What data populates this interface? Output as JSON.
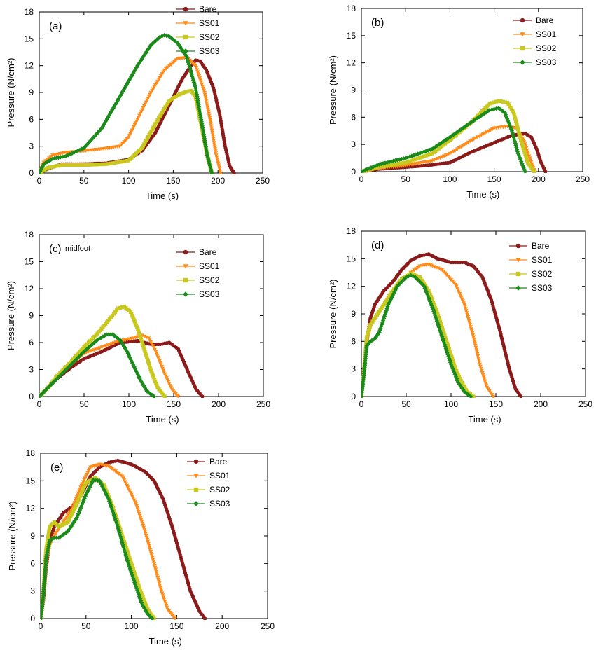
{
  "chart_data": [
    {
      "panel": "(a)",
      "type": "scatter",
      "xlabel": "Time (s)",
      "ylabel": "Pressure (N/cm²)",
      "xlim": [
        0,
        250
      ],
      "ylim": [
        0,
        18
      ],
      "xticks": [
        0,
        50,
        100,
        150,
        200,
        250
      ],
      "yticks": [
        0,
        3,
        6,
        9,
        12,
        15,
        18
      ],
      "xtick_labels": [
        "0",
        "50",
        "100",
        "150",
        "200",
        "250"
      ],
      "ytick_labels": [
        "0",
        "3",
        "6",
        "9",
        "12",
        "15",
        "18"
      ],
      "legend_position": "top-right",
      "series": [
        {
          "name": "Bare",
          "color": "#8b1a1a",
          "marker": "circle",
          "x": [
            0,
            10,
            25,
            50,
            75,
            100,
            115,
            130,
            145,
            160,
            170,
            175,
            180,
            187,
            195,
            202,
            208,
            213,
            218
          ],
          "y": [
            0,
            0.5,
            1.0,
            1.0,
            1.1,
            1.5,
            2.5,
            4.5,
            7.5,
            10.5,
            12.0,
            12.6,
            12.5,
            11.5,
            9.5,
            6.5,
            3.0,
            0.8,
            0
          ]
        },
        {
          "name": "SS01",
          "color": "#ff8c1a",
          "marker": "triangle-down",
          "x": [
            0,
            5,
            15,
            30,
            50,
            70,
            90,
            100,
            110,
            125,
            140,
            155,
            165,
            175,
            185,
            192,
            198,
            203
          ],
          "y": [
            0,
            1.2,
            2.0,
            2.3,
            2.5,
            2.7,
            3.0,
            4.0,
            6.0,
            9.0,
            11.5,
            12.8,
            12.9,
            12.0,
            9.0,
            5.5,
            2.0,
            0
          ]
        },
        {
          "name": "SS02",
          "color": "#c8c81e",
          "marker": "square",
          "x": [
            0,
            10,
            25,
            50,
            75,
            100,
            115,
            130,
            145,
            155,
            165,
            170,
            175,
            182,
            188,
            193
          ],
          "y": [
            0,
            0.6,
            0.9,
            0.9,
            1.0,
            1.4,
            2.8,
            5.5,
            8.0,
            8.7,
            9.1,
            9.2,
            8.5,
            5.0,
            2.0,
            0
          ]
        },
        {
          "name": "SS03",
          "color": "#1a8a1a",
          "marker": "diamond",
          "x": [
            0,
            5,
            15,
            30,
            50,
            70,
            90,
            110,
            125,
            135,
            140,
            145,
            155,
            165,
            175,
            182,
            188,
            193
          ],
          "y": [
            0,
            1.0,
            1.6,
            1.9,
            2.8,
            5.0,
            8.5,
            12.0,
            14.3,
            15.2,
            15.4,
            15.3,
            14.5,
            13.0,
            9.5,
            5.5,
            2.0,
            0
          ]
        }
      ]
    },
    {
      "panel": "(b)",
      "type": "scatter",
      "xlabel": "Time (s)",
      "ylabel": "Pressure (N/cm²)",
      "xlim": [
        0,
        250
      ],
      "ylim": [
        0,
        18
      ],
      "xticks": [
        0,
        50,
        100,
        150,
        200,
        250
      ],
      "yticks": [
        0,
        3,
        6,
        9,
        12,
        15,
        18
      ],
      "xtick_labels": [
        "0",
        "50",
        "100",
        "150",
        "200",
        "250"
      ],
      "ytick_labels": [
        "0",
        "3",
        "6",
        "9",
        "12",
        "15",
        "18"
      ],
      "legend_position": "top-right",
      "series": [
        {
          "name": "Bare",
          "color": "#8b1a1a",
          "marker": "circle",
          "x": [
            0,
            20,
            50,
            75,
            100,
            125,
            150,
            170,
            185,
            192,
            198,
            203,
            208
          ],
          "y": [
            0,
            0.3,
            0.5,
            0.7,
            1.0,
            2.2,
            3.2,
            4.0,
            4.2,
            3.8,
            2.5,
            1.0,
            0
          ]
        },
        {
          "name": "SS01",
          "color": "#ff8c1a",
          "marker": "triangle-down",
          "x": [
            0,
            20,
            50,
            80,
            100,
            125,
            150,
            165,
            175,
            183,
            190,
            196
          ],
          "y": [
            0,
            0.4,
            0.7,
            1.2,
            2.0,
            3.5,
            4.8,
            5.0,
            4.8,
            3.5,
            1.5,
            0
          ]
        },
        {
          "name": "SS02",
          "color": "#c8c81e",
          "marker": "square",
          "x": [
            0,
            20,
            50,
            80,
            100,
            125,
            145,
            155,
            165,
            172,
            180,
            188,
            195
          ],
          "y": [
            0,
            0.5,
            1.0,
            2.0,
            3.5,
            5.5,
            7.5,
            7.8,
            7.6,
            6.5,
            3.5,
            1.0,
            0
          ]
        },
        {
          "name": "SS03",
          "color": "#1a8a1a",
          "marker": "diamond",
          "x": [
            0,
            20,
            50,
            80,
            100,
            125,
            145,
            155,
            162,
            170,
            177,
            185
          ],
          "y": [
            0,
            0.8,
            1.5,
            2.5,
            3.8,
            5.5,
            6.8,
            7.0,
            6.5,
            4.5,
            2.0,
            0
          ]
        }
      ]
    },
    {
      "panel": "(c)",
      "note": "midfoot",
      "type": "scatter",
      "xlabel": "Time (s)",
      "ylabel": "Pressure (N/cm²)",
      "xlim": [
        0,
        250
      ],
      "ylim": [
        0,
        18
      ],
      "xticks": [
        0,
        50,
        100,
        150,
        200,
        250
      ],
      "yticks": [
        0,
        3,
        6,
        9,
        12,
        15,
        18
      ],
      "xtick_labels": [
        "0",
        "50",
        "100",
        "150",
        "200",
        "250"
      ],
      "ytick_labels": [
        "0",
        "3",
        "6",
        "9",
        "12",
        "15",
        "18"
      ],
      "legend_position": "top-right",
      "series": [
        {
          "name": "Bare",
          "color": "#8b1a1a",
          "marker": "circle",
          "x": [
            0,
            10,
            20,
            35,
            50,
            70,
            90,
            110,
            125,
            135,
            145,
            155,
            165,
            175,
            182
          ],
          "y": [
            0,
            1.0,
            2.0,
            3.2,
            4.2,
            5.0,
            6.0,
            6.2,
            5.8,
            5.8,
            6.0,
            5.3,
            3.0,
            0.8,
            0
          ]
        },
        {
          "name": "SS01",
          "color": "#ff8c1a",
          "marker": "triangle-down",
          "x": [
            0,
            10,
            20,
            35,
            50,
            70,
            90,
            105,
            115,
            122,
            130,
            140,
            148,
            155
          ],
          "y": [
            0,
            1.0,
            2.0,
            3.5,
            4.8,
            5.5,
            6.2,
            6.5,
            6.8,
            6.5,
            5.0,
            2.5,
            0.8,
            0
          ]
        },
        {
          "name": "SS02",
          "color": "#c8c81e",
          "marker": "square",
          "x": [
            0,
            10,
            20,
            35,
            50,
            65,
            80,
            88,
            95,
            102,
            110,
            118,
            125,
            132,
            140
          ],
          "y": [
            0,
            1.0,
            2.3,
            3.8,
            5.5,
            7.0,
            8.8,
            9.8,
            10.0,
            9.4,
            7.5,
            5.0,
            2.8,
            1.0,
            0
          ]
        },
        {
          "name": "SS03",
          "color": "#1a8a1a",
          "marker": "diamond",
          "x": [
            0,
            10,
            20,
            35,
            50,
            65,
            75,
            82,
            90,
            98,
            105,
            112,
            120,
            128
          ],
          "y": [
            0,
            1.0,
            2.0,
            3.5,
            5.0,
            6.3,
            6.9,
            6.9,
            6.3,
            5.0,
            3.5,
            2.0,
            0.6,
            0
          ]
        }
      ]
    },
    {
      "panel": "(d)",
      "type": "scatter",
      "xlabel": "Time (s)",
      "ylabel": "Pressure (N/cm²)",
      "xlim": [
        0,
        250
      ],
      "ylim": [
        0,
        18
      ],
      "xticks": [
        0,
        50,
        100,
        150,
        200,
        250
      ],
      "yticks": [
        0,
        3,
        6,
        9,
        12,
        15,
        18
      ],
      "xtick_labels": [
        "0",
        "50",
        "100",
        "150",
        "200",
        "250"
      ],
      "ytick_labels": [
        "0",
        "3",
        "6",
        "9",
        "12",
        "15",
        "18"
      ],
      "legend_position": "top-right",
      "series": [
        {
          "name": "Bare",
          "color": "#8b1a1a",
          "marker": "circle",
          "x": [
            0,
            3,
            6,
            10,
            15,
            25,
            35,
            45,
            55,
            65,
            75,
            85,
            100,
            115,
            125,
            135,
            145,
            155,
            165,
            172,
            178
          ],
          "y": [
            0,
            2.5,
            6.0,
            8.5,
            10.0,
            11.5,
            12.5,
            13.8,
            14.8,
            15.3,
            15.5,
            15.0,
            14.6,
            14.6,
            14.2,
            13.0,
            10.5,
            7.0,
            3.0,
            0.8,
            0
          ]
        },
        {
          "name": "SS01",
          "color": "#ff8c1a",
          "marker": "triangle-down",
          "x": [
            0,
            3,
            6,
            10,
            15,
            25,
            35,
            45,
            55,
            65,
            75,
            90,
            105,
            115,
            125,
            132,
            140,
            147
          ],
          "y": [
            0,
            2.5,
            6.0,
            7.5,
            8.5,
            10.0,
            11.5,
            12.5,
            13.5,
            14.2,
            14.4,
            13.8,
            12.2,
            10.0,
            6.5,
            3.5,
            1.0,
            0
          ]
        },
        {
          "name": "SS02",
          "color": "#c8c81e",
          "marker": "square",
          "x": [
            0,
            3,
            6,
            10,
            15,
            25,
            35,
            45,
            55,
            65,
            75,
            85,
            95,
            105,
            112,
            118,
            125
          ],
          "y": [
            0,
            3.0,
            6.5,
            7.8,
            8.5,
            10.0,
            11.5,
            12.8,
            13.4,
            13.0,
            11.5,
            9.0,
            6.0,
            3.0,
            1.5,
            0.5,
            0
          ]
        },
        {
          "name": "SS03",
          "color": "#1a8a1a",
          "marker": "diamond",
          "x": [
            0,
            3,
            6,
            10,
            15,
            20,
            30,
            40,
            50,
            55,
            60,
            70,
            80,
            90,
            100,
            108,
            115,
            122
          ],
          "y": [
            0,
            2.5,
            5.5,
            6.0,
            6.3,
            7.0,
            10.0,
            12.0,
            13.0,
            13.2,
            13.0,
            12.0,
            9.5,
            6.5,
            3.5,
            1.5,
            0.5,
            0
          ]
        }
      ]
    },
    {
      "panel": "(e)",
      "type": "scatter",
      "xlabel": "Time (s)",
      "ylabel": "Pressure (N/cm²)",
      "xlim": [
        0,
        250
      ],
      "ylim": [
        0,
        18
      ],
      "xticks": [
        0,
        50,
        100,
        150,
        200,
        250
      ],
      "yticks": [
        0,
        3,
        6,
        9,
        12,
        15,
        18
      ],
      "xtick_labels": [
        "0",
        "50",
        "100",
        "150",
        "200",
        "250"
      ],
      "ytick_labels": [
        "0",
        "3",
        "6",
        "9",
        "12",
        "15",
        "18"
      ],
      "legend_position": "top-right",
      "series": [
        {
          "name": "Bare",
          "color": "#8b1a1a",
          "marker": "circle",
          "x": [
            0,
            3,
            6,
            10,
            15,
            25,
            35,
            45,
            55,
            65,
            75,
            85,
            100,
            115,
            125,
            135,
            145,
            155,
            165,
            175,
            181
          ],
          "y": [
            0,
            2.0,
            5.5,
            8.5,
            10.0,
            11.5,
            12.2,
            13.5,
            15.5,
            16.5,
            17.0,
            17.2,
            16.8,
            16.0,
            15.0,
            13.0,
            10.0,
            6.5,
            3.0,
            0.8,
            0
          ]
        },
        {
          "name": "SS01",
          "color": "#ff8c1a",
          "marker": "triangle-down",
          "x": [
            0,
            3,
            6,
            10,
            15,
            25,
            35,
            45,
            55,
            65,
            75,
            90,
            105,
            115,
            125,
            133,
            140,
            148
          ],
          "y": [
            0,
            2.0,
            6.0,
            8.0,
            9.0,
            10.5,
            12.0,
            14.5,
            16.5,
            16.8,
            16.6,
            15.5,
            12.5,
            9.5,
            6.0,
            3.0,
            1.0,
            0
          ]
        },
        {
          "name": "SS02",
          "color": "#c8c81e",
          "marker": "square",
          "x": [
            0,
            3,
            6,
            10,
            15,
            20,
            30,
            40,
            50,
            60,
            70,
            80,
            90,
            100,
            110,
            118,
            125
          ],
          "y": [
            0,
            3.0,
            7.5,
            10.0,
            10.5,
            10.0,
            10.5,
            12.5,
            14.8,
            15.3,
            14.5,
            12.0,
            9.0,
            6.0,
            3.0,
            1.0,
            0
          ]
        },
        {
          "name": "SS03",
          "color": "#1a8a1a",
          "marker": "diamond",
          "x": [
            0,
            3,
            6,
            10,
            15,
            20,
            30,
            40,
            50,
            58,
            65,
            75,
            85,
            95,
            105,
            112,
            118,
            123
          ],
          "y": [
            0,
            2.5,
            6.5,
            8.5,
            8.8,
            8.8,
            9.5,
            11.0,
            13.5,
            15.1,
            15.0,
            13.0,
            10.0,
            6.5,
            3.5,
            1.5,
            0.5,
            0
          ]
        }
      ]
    }
  ]
}
